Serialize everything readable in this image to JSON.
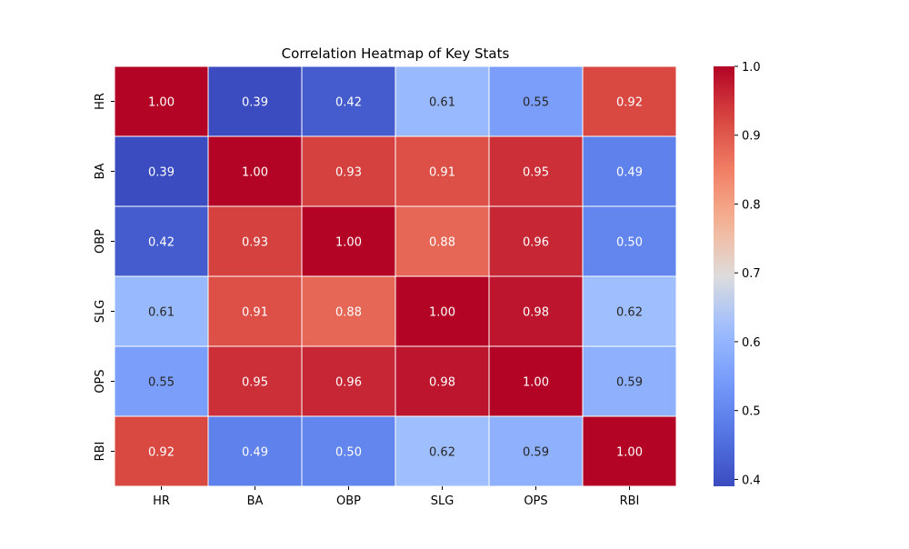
{
  "chart_data": {
    "type": "heatmap",
    "title": "Correlation Heatmap of Key Stats",
    "xlabel": "",
    "ylabel": "",
    "x_labels": [
      "HR",
      "BA",
      "OBP",
      "SLG",
      "OPS",
      "RBI"
    ],
    "y_labels": [
      "HR",
      "BA",
      "OBP",
      "SLG",
      "OPS",
      "RBI"
    ],
    "values": [
      [
        1.0,
        0.39,
        0.42,
        0.61,
        0.55,
        0.92
      ],
      [
        0.39,
        1.0,
        0.93,
        0.91,
        0.95,
        0.49
      ],
      [
        0.42,
        0.93,
        1.0,
        0.88,
        0.96,
        0.5
      ],
      [
        0.61,
        0.91,
        0.88,
        1.0,
        0.98,
        0.62
      ],
      [
        0.55,
        0.95,
        0.96,
        0.98,
        1.0,
        0.59
      ],
      [
        0.92,
        0.49,
        0.5,
        0.62,
        0.59,
        1.0
      ]
    ],
    "value_format": "0.00",
    "colormap": "coolwarm",
    "colorbar": {
      "range": [
        0.39,
        1.0
      ],
      "ticks": [
        "0.4",
        "0.5",
        "0.6",
        "0.7",
        "0.8",
        "0.9",
        "1.0"
      ],
      "placement": "right"
    },
    "cell_border_color": "#ffffff",
    "annotation_light_color": "#ffffff",
    "annotation_dark_color": "#262626"
  }
}
